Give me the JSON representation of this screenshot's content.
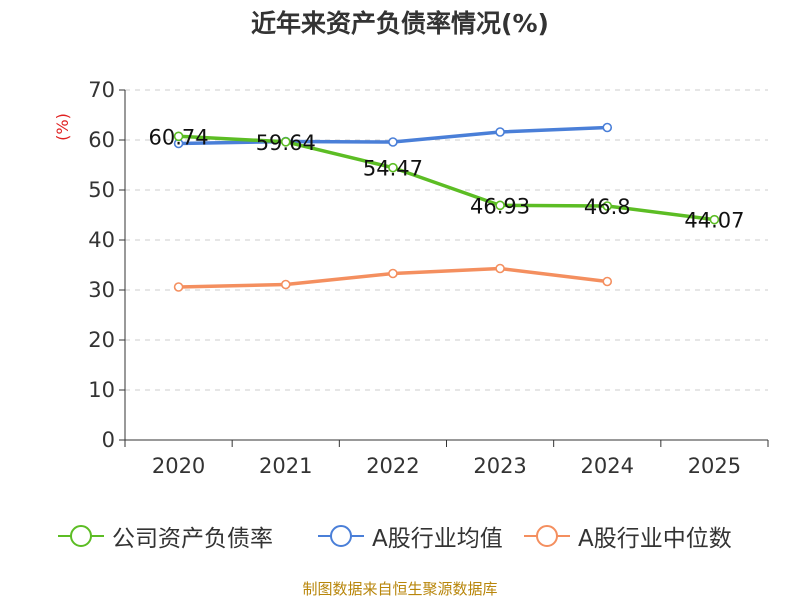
{
  "title": "近年来资产负债率情况(%)",
  "source": "制图数据来自恒生聚源数据库",
  "colors": {
    "company": "#5cbd24",
    "industry_avg": "#4a7fd8",
    "industry_median": "#f48f5f",
    "unit": "#e02020",
    "axis": "#333333",
    "grid": "#cccccc"
  },
  "chart_data": {
    "type": "line",
    "title": "近年来资产负债率情况(%)",
    "ylabel": "(%)",
    "xlabel": "",
    "categories": [
      "2020",
      "2021",
      "2022",
      "2023",
      "2024",
      "2025"
    ],
    "ylim": [
      0,
      70
    ],
    "yticks": [
      0,
      10,
      20,
      30,
      40,
      50,
      60,
      70
    ],
    "grid": true,
    "legend_position": "bottom",
    "series": [
      {
        "key": "company",
        "name": "公司资产负债率",
        "values": [
          60.74,
          59.64,
          54.47,
          46.93,
          46.8,
          44.07
        ],
        "labels": [
          "60.74",
          "59.64",
          "54.47",
          "46.93",
          "46.8",
          "44.07"
        ]
      },
      {
        "key": "industry_avg",
        "name": "A股行业均值",
        "values": [
          59.3,
          59.7,
          59.6,
          61.6,
          62.5,
          null
        ]
      },
      {
        "key": "industry_median",
        "name": "A股行业中位数",
        "values": [
          30.6,
          31.1,
          33.3,
          34.3,
          31.7,
          null
        ]
      }
    ]
  }
}
